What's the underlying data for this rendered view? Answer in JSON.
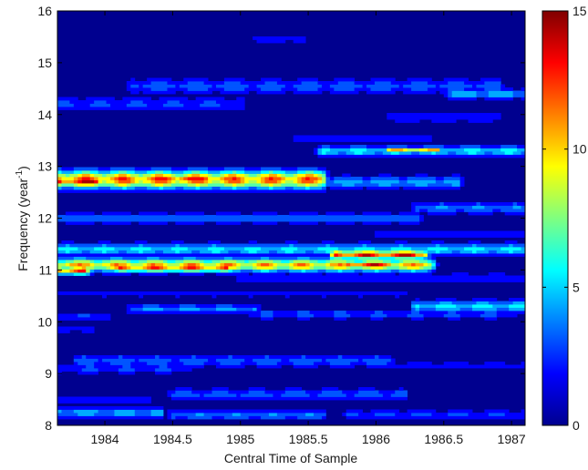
{
  "chart_data": {
    "type": "heatmap",
    "subtype": "filled-contour",
    "title": "",
    "xlabel": "Central Time of Sample",
    "ylabel_main": "Frequency (year",
    "ylabel_sup": "-1",
    "ylabel_close": ")",
    "xlim": [
      1983.65,
      1987.1
    ],
    "ylim": [
      8,
      16
    ],
    "x_ticks": [
      1984,
      1984.5,
      1985,
      1985.5,
      1986,
      1986.5,
      1987
    ],
    "x_tick_labels": [
      "1984",
      "1984.5",
      "1985",
      "1985.5",
      "1986",
      "1986.5",
      "1987"
    ],
    "y_ticks": [
      8,
      9,
      10,
      11,
      12,
      13,
      14,
      15,
      16
    ],
    "y_tick_labels": [
      "8",
      "9",
      "10",
      "11",
      "12",
      "13",
      "14",
      "15",
      "16"
    ],
    "colorbar": {
      "range": [
        0,
        15
      ],
      "ticks": [
        0,
        5,
        10,
        15
      ],
      "tick_labels": [
        "0",
        "5",
        "10",
        "15"
      ],
      "colormap": "jet"
    },
    "background_value": 0.5,
    "ridges": [
      {
        "freq": 15.45,
        "t0": 1985.1,
        "t1": 1985.45,
        "peak": 2.0,
        "width": 0.06
      },
      {
        "freq": 14.55,
        "t0": 1984.2,
        "t1": 1986.9,
        "peak": 3.5,
        "width": 0.1
      },
      {
        "freq": 14.4,
        "t0": 1986.55,
        "t1": 1987.1,
        "peak": 5.5,
        "width": 0.06
      },
      {
        "freq": 14.2,
        "t0": 1983.65,
        "t1": 1985.0,
        "peak": 3.0,
        "width": 0.1
      },
      {
        "freq": 13.95,
        "t0": 1986.1,
        "t1": 1986.9,
        "peak": 2.5,
        "width": 0.08
      },
      {
        "freq": 13.55,
        "t0": 1985.4,
        "t1": 1986.4,
        "peak": 2.2,
        "width": 0.07
      },
      {
        "freq": 13.3,
        "t0": 1985.6,
        "t1": 1987.1,
        "peak": 6.0,
        "width": 0.07
      },
      {
        "freq": 13.32,
        "t0": 1986.1,
        "t1": 1986.45,
        "peak": 11.0,
        "width": 0.04
      },
      {
        "freq": 12.75,
        "t0": 1983.65,
        "t1": 1985.6,
        "peak": 13.0,
        "width": 0.12
      },
      {
        "freq": 12.72,
        "t0": 1983.65,
        "t1": 1983.95,
        "peak": 15.0,
        "width": 0.08
      },
      {
        "freq": 12.78,
        "t0": 1984.4,
        "t1": 1984.75,
        "peak": 14.0,
        "width": 0.06
      },
      {
        "freq": 12.7,
        "t0": 1985.3,
        "t1": 1986.6,
        "peak": 5.0,
        "width": 0.08
      },
      {
        "freq": 12.2,
        "t0": 1986.3,
        "t1": 1987.1,
        "peak": 4.0,
        "width": 0.08
      },
      {
        "freq": 12.0,
        "t0": 1983.65,
        "t1": 1986.3,
        "peak": 4.0,
        "width": 0.07
      },
      {
        "freq": 11.7,
        "t0": 1986.0,
        "t1": 1987.1,
        "peak": 2.5,
        "width": 0.06
      },
      {
        "freq": 11.4,
        "t0": 1983.65,
        "t1": 1987.1,
        "peak": 6.0,
        "width": 0.08
      },
      {
        "freq": 11.3,
        "t0": 1985.7,
        "t1": 1986.35,
        "peak": 14.5,
        "width": 0.06
      },
      {
        "freq": 11.1,
        "t0": 1983.65,
        "t1": 1986.4,
        "peak": 11.5,
        "width": 0.09
      },
      {
        "freq": 11.05,
        "t0": 1984.1,
        "t1": 1984.9,
        "peak": 13.0,
        "width": 0.06
      },
      {
        "freq": 11.0,
        "t0": 1983.65,
        "t1": 1983.85,
        "peak": 13.5,
        "width": 0.06
      },
      {
        "freq": 11.1,
        "t0": 1985.8,
        "t1": 1986.1,
        "peak": 14.5,
        "width": 0.05
      },
      {
        "freq": 10.85,
        "t0": 1985.0,
        "t1": 1987.1,
        "peak": 2.5,
        "width": 0.07
      },
      {
        "freq": 10.55,
        "t0": 1983.65,
        "t1": 1986.2,
        "peak": 2.0,
        "width": 0.06
      },
      {
        "freq": 10.3,
        "t0": 1986.3,
        "t1": 1987.1,
        "peak": 6.0,
        "width": 0.08
      },
      {
        "freq": 10.25,
        "t0": 1984.2,
        "t1": 1985.1,
        "peak": 4.5,
        "width": 0.06
      },
      {
        "freq": 10.15,
        "t0": 1985.1,
        "t1": 1987.0,
        "peak": 3.0,
        "width": 0.07
      },
      {
        "freq": 10.1,
        "t0": 1983.65,
        "t1": 1984.0,
        "peak": 3.0,
        "width": 0.06
      },
      {
        "freq": 9.85,
        "t0": 1983.65,
        "t1": 1983.9,
        "peak": 2.0,
        "width": 0.06
      },
      {
        "freq": 9.25,
        "t0": 1983.8,
        "t1": 1986.1,
        "peak": 3.5,
        "width": 0.09
      },
      {
        "freq": 9.1,
        "t0": 1983.65,
        "t1": 1984.6,
        "peak": 3.0,
        "width": 0.07
      },
      {
        "freq": 9.15,
        "t0": 1986.0,
        "t1": 1987.1,
        "peak": 2.2,
        "width": 0.06
      },
      {
        "freq": 8.6,
        "t0": 1984.5,
        "t1": 1986.2,
        "peak": 3.5,
        "width": 0.08
      },
      {
        "freq": 8.5,
        "t0": 1983.65,
        "t1": 1984.3,
        "peak": 2.5,
        "width": 0.06
      },
      {
        "freq": 8.25,
        "t0": 1983.65,
        "t1": 1984.4,
        "peak": 5.0,
        "width": 0.07
      },
      {
        "freq": 8.2,
        "t0": 1984.5,
        "t1": 1985.6,
        "peak": 4.0,
        "width": 0.07
      },
      {
        "freq": 8.2,
        "t0": 1985.8,
        "t1": 1987.1,
        "peak": 3.0,
        "width": 0.07
      }
    ]
  }
}
